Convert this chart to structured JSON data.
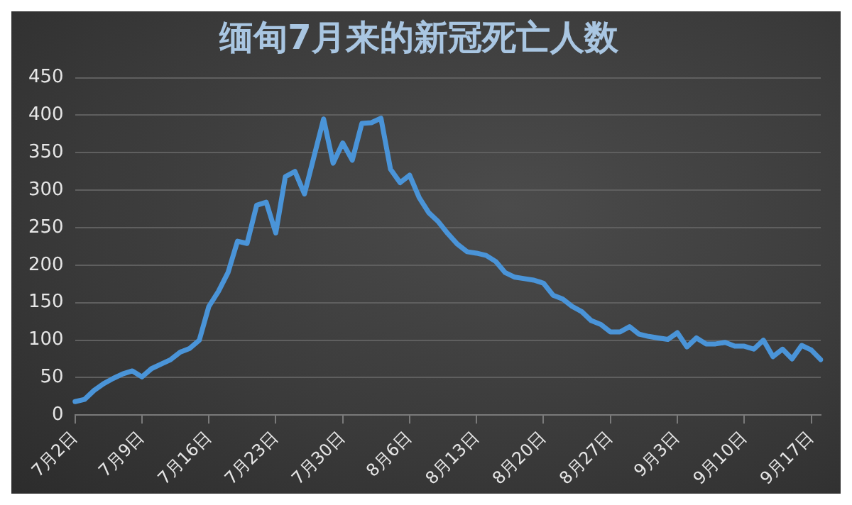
{
  "chart_data": {
    "type": "line",
    "title": "缅甸7月来的新冠死亡人数",
    "categories": [
      "7月2日",
      null,
      null,
      null,
      null,
      null,
      null,
      "7月9日",
      null,
      null,
      null,
      null,
      null,
      null,
      "7月16日",
      null,
      null,
      null,
      null,
      null,
      null,
      "7月23日",
      null,
      null,
      null,
      null,
      null,
      null,
      "7月30日",
      null,
      null,
      null,
      null,
      null,
      null,
      "8月6日",
      null,
      null,
      null,
      null,
      null,
      null,
      "8月13日",
      null,
      null,
      null,
      null,
      null,
      null,
      "8月20日",
      null,
      null,
      null,
      null,
      null,
      null,
      "8月27日",
      null,
      null,
      null,
      null,
      null,
      null,
      "9月3日",
      null,
      null,
      null,
      null,
      null,
      null,
      "9月10日",
      null,
      null,
      null,
      null,
      null,
      null,
      "9月17日",
      null
    ],
    "series": [
      {
        "color": "#4a94d8",
        "values": [
          18,
          21,
          33,
          42,
          49,
          55,
          59,
          51,
          62,
          68,
          74,
          84,
          89,
          100,
          145,
          165,
          190,
          232,
          229,
          280,
          284,
          243,
          318,
          325,
          295,
          345,
          395,
          336,
          363,
          340,
          389,
          390,
          396,
          328,
          310,
          320,
          290,
          270,
          258,
          242,
          228,
          218,
          216,
          213,
          205,
          190,
          184,
          182,
          180,
          176,
          160,
          155,
          145,
          138,
          126,
          121,
          111,
          111,
          118,
          108,
          105,
          103,
          101,
          110,
          91,
          103,
          95,
          95,
          97,
          92,
          92,
          88,
          100,
          78,
          88,
          75,
          93,
          87,
          74
        ]
      }
    ],
    "ylim": [
      0,
      450
    ],
    "yticks": [
      0,
      50,
      100,
      150,
      200,
      250,
      300,
      350,
      400,
      450
    ],
    "grid": "y",
    "marker": "none",
    "line_style": "solid"
  }
}
